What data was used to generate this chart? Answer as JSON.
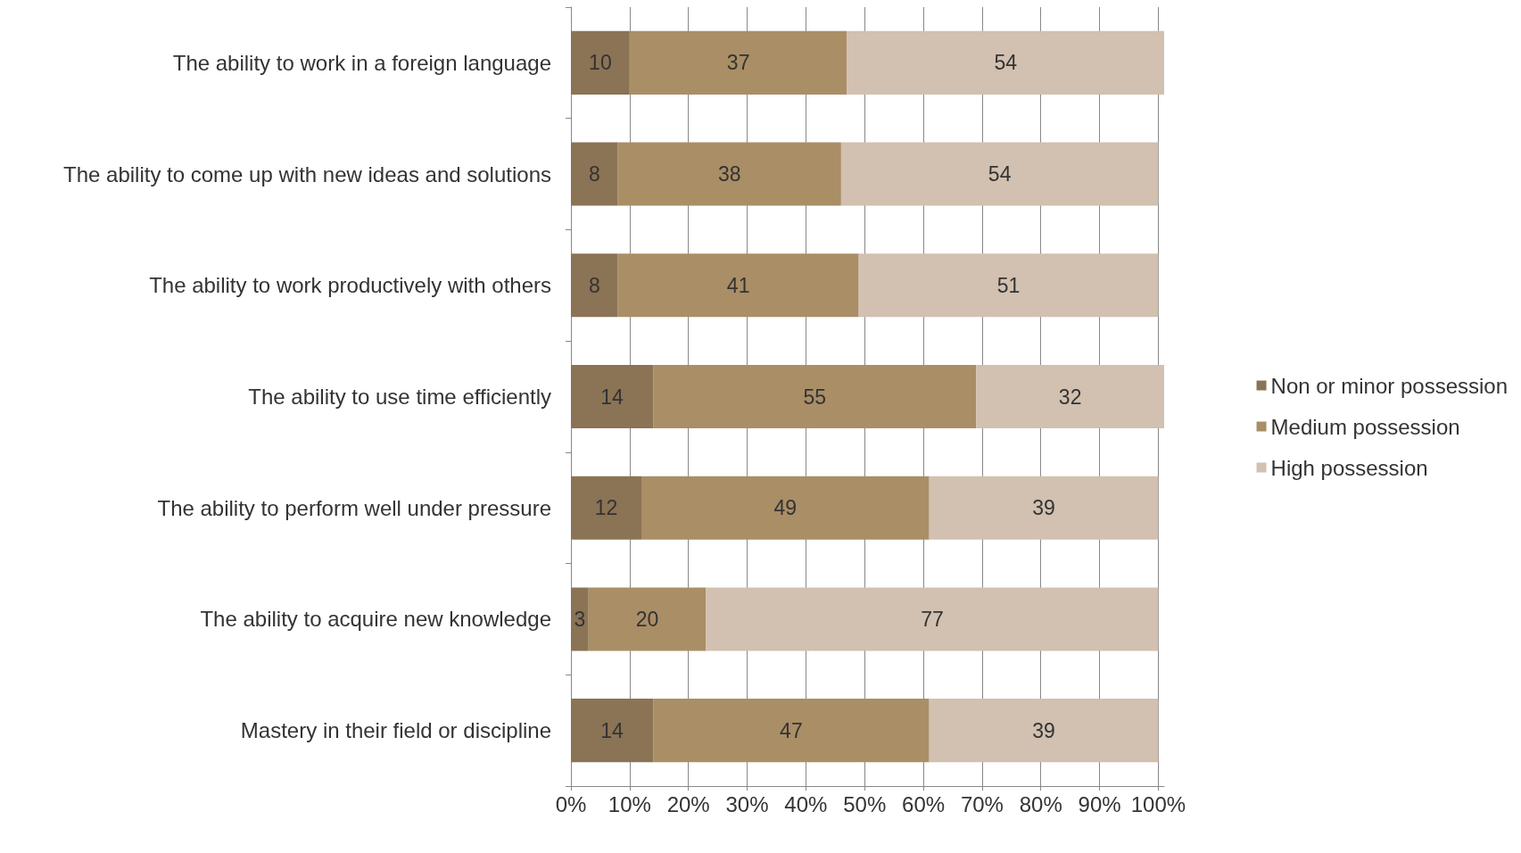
{
  "chart_data": {
    "type": "bar",
    "orientation": "horizontal",
    "stacked": true,
    "data_labels": true,
    "grid": "x",
    "legend": "right",
    "categories": [
      "The ability to work in a foreign language",
      "The ability to come up with new ideas and solutions",
      "The ability to work productively with others",
      "The ability to use time efficiently",
      "The ability to perform well under pressure",
      "The ability to acquire new knowledge",
      "Mastery in their field or discipline"
    ],
    "series": [
      {
        "name": "Non or minor possession",
        "color": "#8b7355",
        "values": [
          10,
          8,
          8,
          14,
          12,
          3,
          14
        ]
      },
      {
        "name": "Medium possession",
        "color": "#a98e66",
        "values": [
          37,
          38,
          41,
          55,
          49,
          20,
          47
        ]
      },
      {
        "name": "High possession",
        "color": "#d2c0b0",
        "values": [
          54,
          54,
          51,
          32,
          39,
          77,
          39
        ]
      }
    ],
    "xlim": [
      0,
      101
    ],
    "xticks": [
      {
        "value": 0,
        "label": "0%"
      },
      {
        "value": 10,
        "label": "10%"
      },
      {
        "value": 20,
        "label": "20%"
      },
      {
        "value": 30,
        "label": "30%"
      },
      {
        "value": 40,
        "label": "40%"
      },
      {
        "value": 50,
        "label": "50%"
      },
      {
        "value": 60,
        "label": "60%"
      },
      {
        "value": 70,
        "label": "70%"
      },
      {
        "value": 80,
        "label": "80%"
      },
      {
        "value": 90,
        "label": "90%"
      },
      {
        "value": 100,
        "label": "100%"
      }
    ]
  }
}
